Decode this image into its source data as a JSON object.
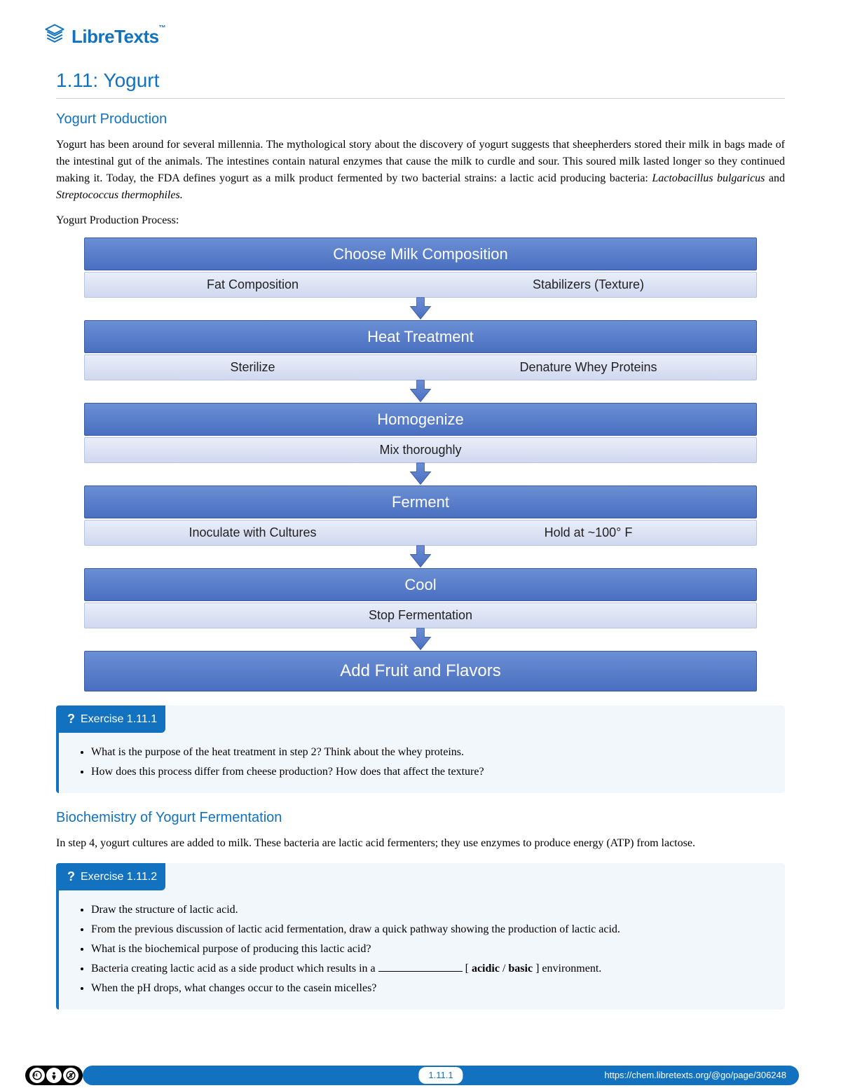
{
  "logo": {
    "text": "LibreTexts",
    "tm": "™"
  },
  "title": "1.11: Yogurt",
  "section1": {
    "heading": "Yogurt Production",
    "paragraph_parts": [
      "Yogurt has been around for several millennia. The mythological story about the discovery of yogurt suggests that sheepherders stored their milk in bags made of the intestinal gut of the animals. The intestines contain natural enzymes that cause the milk to curdle and sour. This soured milk lasted longer so they continued making it. Today, the FDA defines yogurt as a milk product fermented by two bacterial strains: a lactic acid producing bacteria: ",
      "Lactobacillus bulgaricus",
      " and ",
      "Streptococcus thermophiles.",
      ""
    ],
    "process_label": "Yogurt Production Process:"
  },
  "flowchart": {
    "colors": {
      "header_grad_top": "#6b8fd4",
      "header_grad_bot": "#4a6fc0",
      "header_border": "#3a5aa8",
      "sub_grad_top": "#eaeef9",
      "sub_grad_bot": "#cfd8ef",
      "sub_border": "#b8c4e6",
      "arrow_fill": "#5c7fc9",
      "arrow_border": "#3a5aa8"
    },
    "steps": [
      {
        "title": "Choose Milk Composition",
        "subs": [
          "Fat Composition",
          "Stabilizers (Texture)"
        ]
      },
      {
        "title": "Heat Treatment",
        "subs": [
          "Sterilize",
          "Denature Whey Proteins"
        ]
      },
      {
        "title": "Homogenize",
        "subs": [
          "Mix thoroughly"
        ]
      },
      {
        "title": "Ferment",
        "subs": [
          "Inoculate with Cultures",
          "Hold at ~100° F"
        ]
      },
      {
        "title": "Cool",
        "subs": [
          "Stop Fermentation"
        ]
      },
      {
        "title": "Add Fruit and Flavors",
        "subs": [],
        "big": true
      }
    ]
  },
  "exercise1": {
    "title": "Exercise 1.11.1",
    "items": [
      "What is the purpose of the heat treatment in step 2? Think about the whey proteins.",
      "How does this process differ from cheese production? How does that affect the texture?"
    ]
  },
  "section2": {
    "heading": "Biochemistry of Yogurt Fermentation",
    "paragraph": "In step 4, yogurt cultures are added to milk. These bacteria are lactic acid fermenters; they use enzymes to produce energy (ATP) from lactose."
  },
  "exercise2": {
    "title": "Exercise 1.11.2",
    "items_pre": [
      "Draw the structure of lactic acid.",
      "From the previous discussion of lactic acid fermentation, draw a quick pathway showing the production of lactic acid.",
      "What is the biochemical purpose of producing this lactic acid?"
    ],
    "item4_parts": {
      "pre": "Bacteria creating lactic acid as a side product which results in a ",
      "bracket": " [ ",
      "opt1": "acidic",
      "sep": " / ",
      "opt2": "basic",
      "close": " ] environment."
    },
    "item5": "When the pH drops, what changes occur to the casein micelles?"
  },
  "footer": {
    "page_num": "1.11.1",
    "url": "https://chem.libretexts.org/@go/page/306248",
    "cc": [
      "CC",
      "BY",
      "NC"
    ]
  }
}
